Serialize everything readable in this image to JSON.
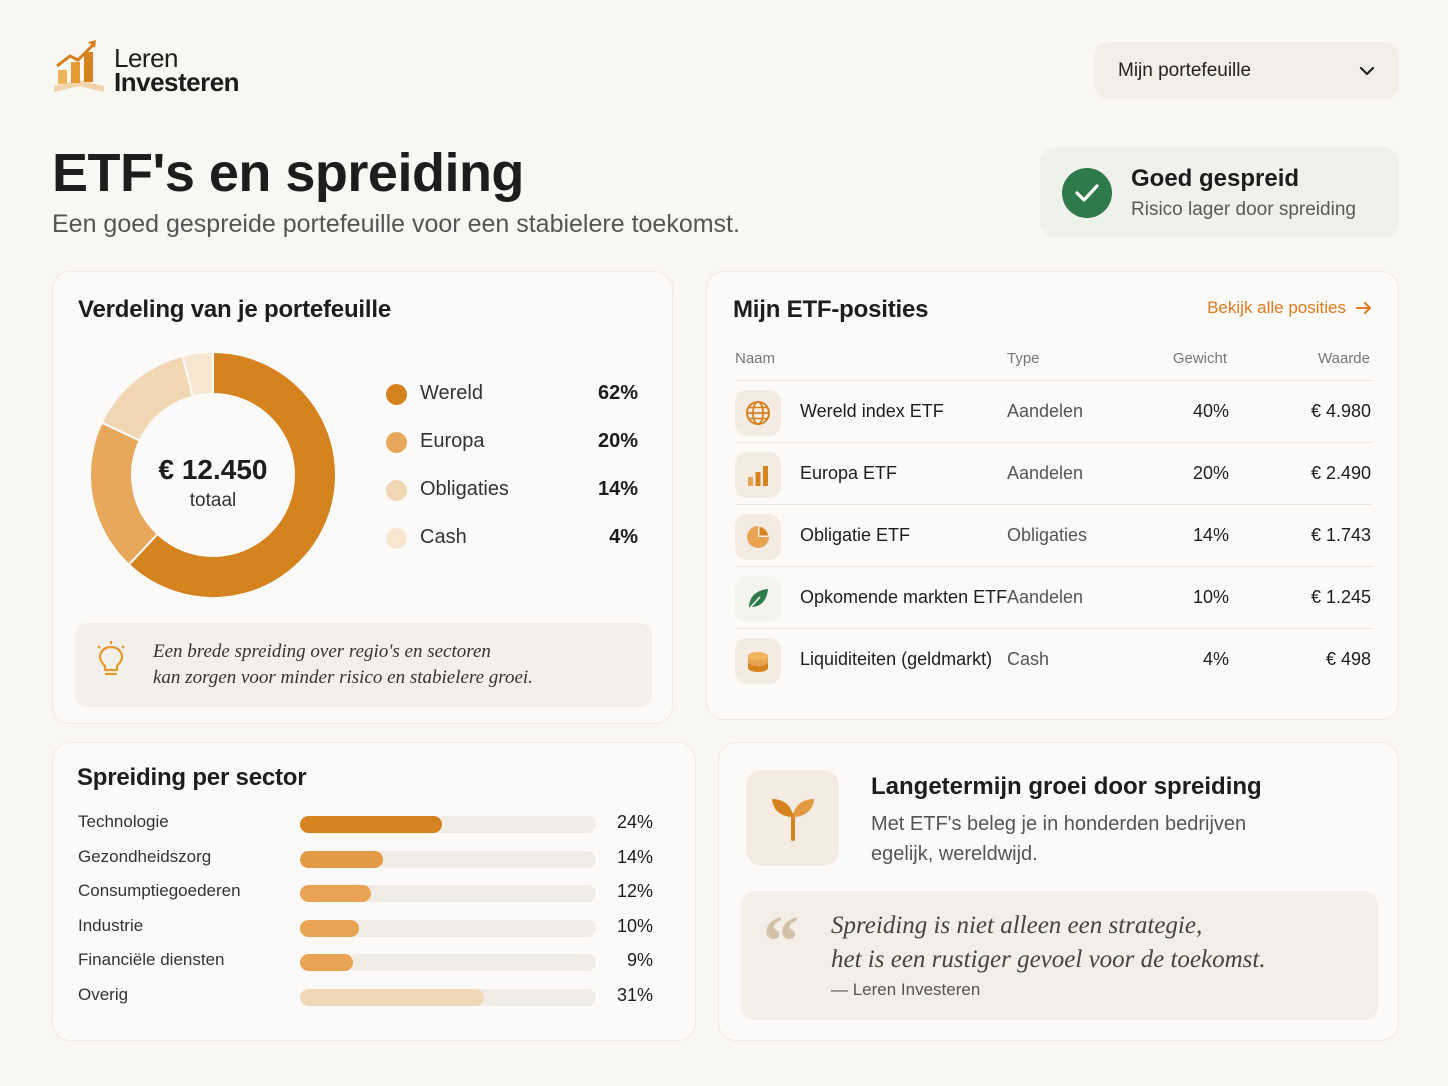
{
  "brand": {
    "line1": "Leren",
    "line2": "Investeren"
  },
  "portfolio_select": {
    "value": "Mijn portefeuille"
  },
  "header": {
    "title": "ETF's en spreiding",
    "subtitle": "Een goed gespreide portefeuille voor een stabielere toekomst."
  },
  "status": {
    "title": "Goed gespreid",
    "subtitle": "Risico lager door spreiding",
    "color": "#2e7a4b"
  },
  "distribution": {
    "title": "Verdeling van je portefeuille",
    "total_amount": "€ 12.450",
    "total_label": "totaal",
    "items": [
      {
        "label": "Wereld",
        "percent": "62%",
        "value": 62,
        "color": "#d4831f"
      },
      {
        "label": "Europa",
        "percent": "20%",
        "value": 20,
        "color": "#e7a85c"
      },
      {
        "label": "Obligaties",
        "percent": "14%",
        "value": 14,
        "color": "#f2d7b5"
      },
      {
        "label": "Cash",
        "percent": "4%",
        "value": 4,
        "color": "#f7e7d1"
      }
    ],
    "tip_line1": "Een brede spreiding over regio's en sectoren",
    "tip_line2": "kan zorgen voor minder risico en stabielere groei."
  },
  "etf": {
    "title": "Mijn ETF-posities",
    "view_all": "Bekijk alle posities",
    "columns": {
      "name": "Naam",
      "type": "Type",
      "weight": "Gewicht",
      "value": "Waarde"
    },
    "rows": [
      {
        "name": "Wereld index ETF",
        "type": "Aandelen",
        "weight": "40%",
        "value": "€ 4.980",
        "icon": "globe-icon"
      },
      {
        "name": "Europa ETF",
        "type": "Aandelen",
        "weight": "20%",
        "value": "€ 2.490",
        "icon": "bar-chart-icon"
      },
      {
        "name": "Obligatie ETF",
        "type": "Obligaties",
        "weight": "14%",
        "value": "€ 1.743",
        "icon": "pie-chart-icon"
      },
      {
        "name": "Opkomende markten ETF",
        "type": "Aandelen",
        "weight": "10%",
        "value": "€ 1.245",
        "icon": "leaf-icon"
      },
      {
        "name": "Liquiditeiten (geldmarkt)",
        "type": "Cash",
        "weight": "4%",
        "value": "€ 498",
        "icon": "coins-icon"
      }
    ]
  },
  "sectors": {
    "title": "Spreiding per sector",
    "items": [
      {
        "label": "Technologie",
        "percent": "24%",
        "value": 24,
        "color": "#d4831f"
      },
      {
        "label": "Gezondheidszorg",
        "percent": "14%",
        "value": 14,
        "color": "#e39a45"
      },
      {
        "label": "Consumptiegoederen",
        "percent": "12%",
        "value": 12,
        "color": "#e8a452"
      },
      {
        "label": "Industrie",
        "percent": "10%",
        "value": 10,
        "color": "#e8a452"
      },
      {
        "label": "Financiële diensten",
        "percent": "9%",
        "value": 9,
        "color": "#e8a452"
      },
      {
        "label": "Overig",
        "percent": "31%",
        "value": 31,
        "color": "#f1d8b8"
      }
    ]
  },
  "growth": {
    "title": "Langetermijn groei door spreiding",
    "text_line1": "Met ETF's beleg je in honderden bedrijven",
    "text_line2": "egelijk, wereldwijd.",
    "quote_line1": "Spreiding is niet alleen een strategie,",
    "quote_line2": "het is een rustiger gevoel voor de toekomst.",
    "quote_author": "— Leren Investeren",
    "icon": "sprout-icon"
  },
  "colors": {
    "accent": "#e07a1c",
    "primary_orange": "#d4831f"
  }
}
